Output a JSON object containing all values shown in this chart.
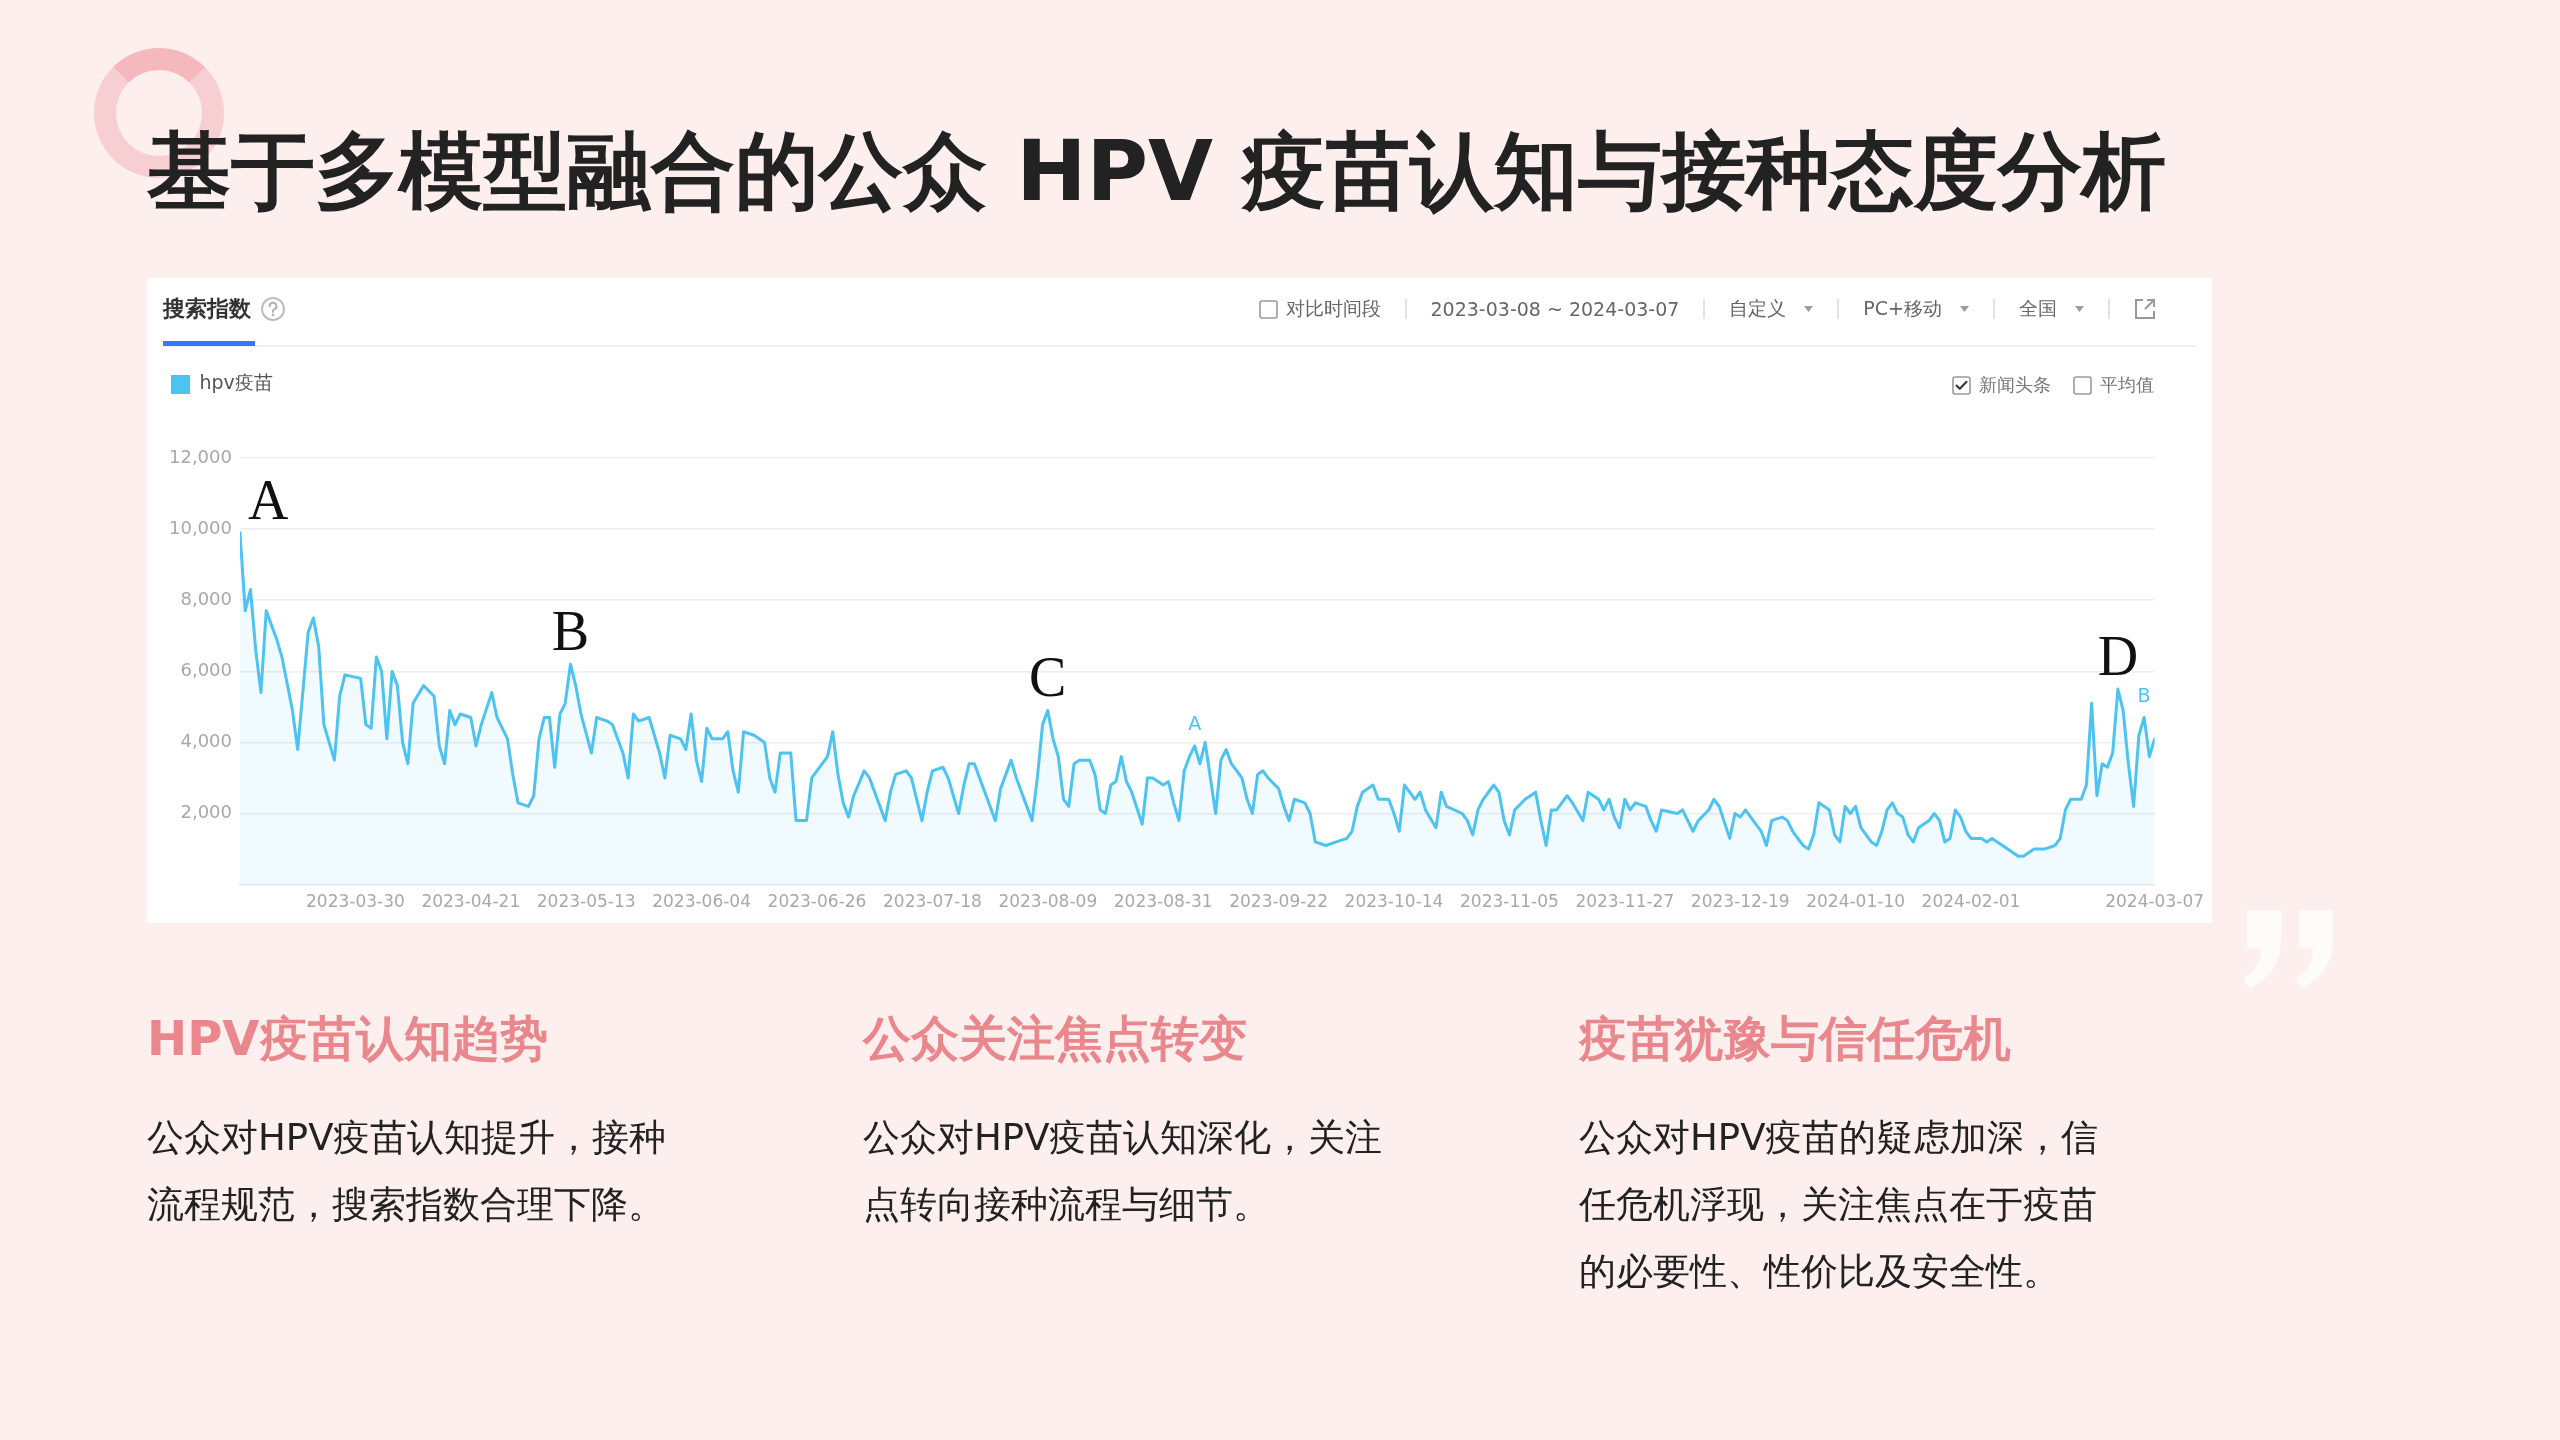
{
  "chart_data": [
    {
      "type": "area",
      "title": "基于多模型融合的公众 HPV 疫苗认知与接种态度分析",
      "x": [
        "2023-03-08",
        "2023-03-09",
        "2023-03-10",
        "2023-03-11",
        "2023-03-12",
        "2023-03-13",
        "2023-03-15",
        "2023-03-16",
        "2023-03-18",
        "2023-03-19",
        "2023-03-21",
        "2023-03-22",
        "2023-03-23",
        "2023-03-24",
        "2023-03-26",
        "2023-03-27",
        "2023-03-28",
        "2023-03-31",
        "2023-04-01",
        "2023-04-02",
        "2023-04-03",
        "2023-04-04",
        "2023-04-05",
        "2023-04-06",
        "2023-04-07",
        "2023-04-08",
        "2023-04-09",
        "2023-04-10",
        "2023-04-12",
        "2023-04-14",
        "2023-04-15",
        "2023-04-16",
        "2023-04-17",
        "2023-04-18",
        "2023-04-19",
        "2023-04-21",
        "2023-04-22",
        "2023-04-23",
        "2023-04-25",
        "2023-04-26",
        "2023-04-28",
        "2023-04-29",
        "2023-04-30",
        "2023-05-02",
        "2023-05-03",
        "2023-05-04",
        "2023-05-05",
        "2023-05-06",
        "2023-05-07",
        "2023-05-08",
        "2023-05-09",
        "2023-05-10",
        "2023-05-11",
        "2023-05-12",
        "2023-05-14",
        "2023-05-15",
        "2023-05-17",
        "2023-05-18",
        "2023-05-20",
        "2023-05-21",
        "2023-05-22",
        "2023-05-23",
        "2023-05-25",
        "2023-05-27",
        "2023-05-28",
        "2023-05-29",
        "2023-05-31",
        "2023-06-01",
        "2023-06-02",
        "2023-06-03",
        "2023-06-04",
        "2023-06-05",
        "2023-06-06",
        "2023-06-08",
        "2023-06-09",
        "2023-06-10",
        "2023-06-11",
        "2023-06-12",
        "2023-06-14",
        "2023-06-16",
        "2023-06-17",
        "2023-06-18",
        "2023-06-19",
        "2023-06-21",
        "2023-06-22",
        "2023-06-24",
        "2023-06-25",
        "2023-06-27",
        "2023-06-28",
        "2023-06-29",
        "2023-06-30",
        "2023-07-01",
        "2023-07-02",
        "2023-07-03",
        "2023-07-05",
        "2023-07-06",
        "2023-07-08",
        "2023-07-09",
        "2023-07-10",
        "2023-07-11",
        "2023-07-13",
        "2023-07-14",
        "2023-07-16",
        "2023-07-17",
        "2023-07-18",
        "2023-07-20",
        "2023-07-21",
        "2023-07-23",
        "2023-07-24",
        "2023-07-25",
        "2023-07-26",
        "2023-07-28",
        "2023-07-30",
        "2023-07-31",
        "2023-08-02",
        "2023-08-03",
        "2023-08-05",
        "2023-08-06",
        "2023-08-07",
        "2023-08-08",
        "2023-08-09",
        "2023-08-10",
        "2023-08-11",
        "2023-08-12",
        "2023-08-13",
        "2023-08-14",
        "2023-08-15",
        "2023-08-17",
        "2023-08-18",
        "2023-08-19",
        "2023-08-20",
        "2023-08-21",
        "2023-08-22",
        "2023-08-23",
        "2023-08-24",
        "2023-08-25",
        "2023-08-27",
        "2023-08-28",
        "2023-08-29",
        "2023-08-31",
        "2023-09-01",
        "2023-09-02",
        "2023-09-03",
        "2023-09-04",
        "2023-09-05",
        "2023-09-06",
        "2023-09-07",
        "2023-09-08",
        "2023-09-09",
        "2023-09-10",
        "2023-09-11",
        "2023-09-12",
        "2023-09-13",
        "2023-09-15",
        "2023-09-16",
        "2023-09-17",
        "2023-09-18",
        "2023-09-19",
        "2023-09-20",
        "2023-09-22",
        "2023-09-23",
        "2023-09-24",
        "2023-09-25",
        "2023-09-27",
        "2023-09-28",
        "2023-09-29",
        "2023-10-01",
        "2023-10-03",
        "2023-10-05",
        "2023-10-06",
        "2023-10-07",
        "2023-10-08",
        "2023-10-10",
        "2023-10-11",
        "2023-10-13",
        "2023-10-14",
        "2023-10-15",
        "2023-10-16",
        "2023-10-17",
        "2023-10-18",
        "2023-10-19",
        "2023-10-20",
        "2023-10-22",
        "2023-10-23",
        "2023-10-24",
        "2023-10-27",
        "2023-10-28",
        "2023-10-29",
        "2023-10-30",
        "2023-10-31",
        "2023-11-02",
        "2023-11-03",
        "2023-11-04",
        "2023-11-05",
        "2023-11-06",
        "2023-11-08",
        "2023-11-10",
        "2023-11-11",
        "2023-11-12",
        "2023-11-13",
        "2023-11-14",
        "2023-11-16",
        "2023-11-17",
        "2023-11-19",
        "2023-11-20",
        "2023-11-22",
        "2023-11-23",
        "2023-11-24",
        "2023-11-25",
        "2023-11-26",
        "2023-11-27",
        "2023-11-28",
        "2023-11-29",
        "2023-12-01",
        "2023-12-02",
        "2023-12-03",
        "2023-12-04",
        "2023-12-07",
        "2023-12-08",
        "2023-12-10",
        "2023-12-11",
        "2023-12-13",
        "2023-12-14",
        "2023-12-15",
        "2023-12-17",
        "2023-12-18",
        "2023-12-19",
        "2023-12-20",
        "2023-12-21",
        "2023-12-23",
        "2023-12-24",
        "2023-12-25",
        "2023-12-27",
        "2023-12-28",
        "2023-12-29",
        "2023-12-31",
        "2024-01-01",
        "2024-01-02",
        "2024-01-03",
        "2024-01-05",
        "2024-01-06",
        "2024-01-07",
        "2024-01-08",
        "2024-01-09",
        "2024-01-10",
        "2024-01-11",
        "2024-01-13",
        "2024-01-14",
        "2024-01-15",
        "2024-01-16",
        "2024-01-17",
        "2024-01-18",
        "2024-01-19",
        "2024-01-20",
        "2024-01-21",
        "2024-01-22",
        "2024-01-24",
        "2024-01-25",
        "2024-01-26",
        "2024-01-27",
        "2024-01-28",
        "2024-01-29",
        "2024-01-30",
        "2024-01-31",
        "2024-02-01",
        "2024-02-03",
        "2024-02-04",
        "2024-02-05",
        "2024-02-07",
        "2024-02-08",
        "2024-02-10",
        "2024-02-11",
        "2024-02-13",
        "2024-02-15",
        "2024-02-17",
        "2024-02-18",
        "2024-02-19",
        "2024-02-20",
        "2024-02-22",
        "2024-02-23",
        "2024-02-24",
        "2024-02-25",
        "2024-02-26",
        "2024-02-27",
        "2024-02-28",
        "2024-02-29",
        "2024-03-01",
        "2024-03-02",
        "2024-03-03",
        "2024-03-04",
        "2024-03-05",
        "2024-03-06",
        "2024-03-07"
      ],
      "series": [
        {
          "name": "hpv疫苗",
          "color": "#4dc3f1",
          "values": [
            9900,
            7700,
            8300,
            6600,
            5400,
            7700,
            6900,
            6400,
            4900,
            3800,
            7100,
            7500,
            6700,
            4500,
            3500,
            5300,
            5900,
            5800,
            4500,
            4400,
            6400,
            6000,
            4100,
            6000,
            5600,
            4000,
            3400,
            5100,
            5600,
            5300,
            3900,
            3400,
            4900,
            4500,
            4800,
            4700,
            3900,
            4500,
            5400,
            4700,
            4100,
            3100,
            2300,
            2200,
            2500,
            4100,
            4700,
            4700,
            3300,
            4800,
            5100,
            6200,
            5600,
            4800,
            3700,
            4700,
            4600,
            4500,
            3700,
            3000,
            4800,
            4600,
            4700,
            3700,
            3000,
            4200,
            4100,
            3800,
            4800,
            3500,
            2900,
            4400,
            4100,
            4100,
            4300,
            3200,
            2600,
            4300,
            4200,
            4000,
            3000,
            2600,
            3700,
            3700,
            1800,
            1800,
            3000,
            3400,
            3600,
            4300,
            3100,
            2300,
            1900,
            2500,
            3200,
            3000,
            2200,
            1800,
            2600,
            3100,
            3200,
            3000,
            1800,
            2600,
            3200,
            3300,
            3000,
            2000,
            2800,
            3400,
            3400,
            2600,
            1800,
            2700,
            3500,
            3000,
            2200,
            1800,
            3000,
            4500,
            4900,
            4100,
            3600,
            2400,
            2200,
            3400,
            3500,
            3500,
            3100,
            2100,
            2000,
            2800,
            2900,
            3600,
            2900,
            2600,
            1700,
            3000,
            3000,
            2800,
            2900,
            2300,
            1800,
            3200,
            3600,
            3900,
            3400,
            4000,
            3000,
            2000,
            3500,
            3800,
            3400,
            3000,
            2400,
            2000,
            3100,
            3200,
            3000,
            2700,
            2200,
            1800,
            2400,
            2300,
            2000,
            1200,
            1100,
            1200,
            1300,
            1500,
            2200,
            2600,
            2800,
            2400,
            2400,
            2000,
            1500,
            2800,
            2600,
            2400,
            2600,
            2100,
            1600,
            2600,
            2200,
            2000,
            1800,
            1400,
            2100,
            2400,
            2800,
            2600,
            1800,
            1400,
            2100,
            2400,
            2600,
            1800,
            1100,
            2100,
            2100,
            2500,
            2300,
            1800,
            2600,
            2400,
            2100,
            2400,
            1900,
            1600,
            2400,
            2100,
            2300,
            2200,
            1800,
            1500,
            2100,
            2000,
            2100,
            1500,
            1800,
            2100,
            2400,
            2200,
            1300,
            2000,
            1900,
            2100,
            1900,
            1500,
            1100,
            1800,
            1900,
            1800,
            1500,
            1100,
            1000,
            1400,
            2300,
            2100,
            1400,
            1200,
            2200,
            2000,
            2200,
            1600,
            1200,
            1100,
            1500,
            2100,
            2300,
            2000,
            1900,
            1400,
            1200,
            1600,
            1800,
            2000,
            1800,
            1200,
            1300,
            2100,
            1900,
            1500,
            1300,
            1300,
            1200,
            1300,
            1100,
            1000,
            800,
            800,
            1000,
            1000,
            1100,
            1300,
            2100,
            2400,
            2400,
            2800,
            5100,
            2500,
            3400,
            3300,
            3700,
            5500,
            4900,
            3400,
            2200,
            4200,
            4700,
            3600,
            4100
          ]
        }
      ],
      "xlim": [
        "2023-03-08",
        "2024-03-07"
      ],
      "xticks": [
        "2023-03-30",
        "2023-04-21",
        "2023-05-13",
        "2023-06-04",
        "2023-06-26",
        "2023-07-18",
        "2023-08-09",
        "2023-08-31",
        "2023-09-22",
        "2023-10-14",
        "2023-11-05",
        "2023-11-27",
        "2023-12-19",
        "2024-01-10",
        "2024-02-01",
        "2024-03-07"
      ],
      "ylim": [
        0,
        12000
      ],
      "yticks": [
        {
          "value": 2000,
          "label": "2,000"
        },
        {
          "value": 4000,
          "label": "4,000"
        },
        {
          "value": 6000,
          "label": "6,000"
        },
        {
          "value": 8000,
          "label": "8,000"
        },
        {
          "value": 10000,
          "label": "10,000"
        },
        {
          "value": 12000,
          "label": "12,000"
        }
      ],
      "grid": "y",
      "legend": "top left",
      "annotations": [
        {
          "text": "A",
          "x": "2023-03-08",
          "y": 9900
        },
        {
          "text": "B",
          "x": "2023-05-10",
          "y": 6200
        },
        {
          "text": "C",
          "x": "2023-08-09",
          "y": 4900
        },
        {
          "text": "D",
          "x": "2024-02-29",
          "y": 5500
        },
        {
          "text": "A",
          "x": "2023-09-06",
          "y": 3900
        },
        {
          "text": "B",
          "x": "2024-03-05",
          "y": 4700
        },
        "搜索指数",
        "对比时间段",
        "2023-03-08 ~ 2024-03-07",
        "自定义",
        "PC+移动",
        "全国",
        "新闻头条",
        "平均值"
      ]
    },
    {
      "type": "other",
      "title": "HPV疫苗认知趋势",
      "annotations": [
        "公众对HPV疫苗认知提升，接种流程规范，搜索指数合理下降。"
      ]
    },
    {
      "type": "other",
      "title": "公众关注焦点转变",
      "annotations": [
        "公众对HPV疫苗认知深化，关注点转向接种流程与细节。"
      ]
    },
    {
      "type": "other",
      "title": "疫苗犹豫与信任危机",
      "annotations": [
        "公众对HPV疫苗的疑虑加深，信任危机浮现，关注焦点在于疫苗的必要性、性价比及安全性。"
      ]
    }
  ]
}
